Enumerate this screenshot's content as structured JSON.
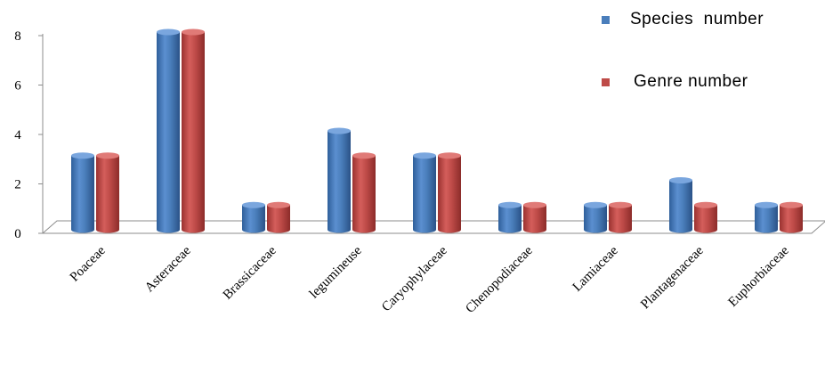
{
  "chart_data": {
    "type": "bar",
    "categories": [
      "Poaceae",
      "Asteraceae",
      "Brassicaceae",
      "legumineuse",
      "Caryophylaceae",
      "Chenopodiaceae",
      "Lamiaceae",
      "Plantagenaceae",
      "Euphorbiaceae"
    ],
    "series": [
      {
        "name": "Species  number",
        "values": [
          3,
          8,
          1,
          4,
          3,
          1,
          1,
          2,
          1
        ],
        "color": "#4a7ebb"
      },
      {
        "name": "Genre number",
        "values": [
          3,
          8,
          1,
          3,
          3,
          1,
          1,
          1,
          1
        ],
        "color": "#be4b48"
      }
    ],
    "ylim": [
      0,
      8
    ],
    "yticks": [
      "0",
      "2",
      "4",
      "6",
      "8"
    ],
    "grid": false,
    "legend": "top-right",
    "style": "3d-cylinder"
  }
}
